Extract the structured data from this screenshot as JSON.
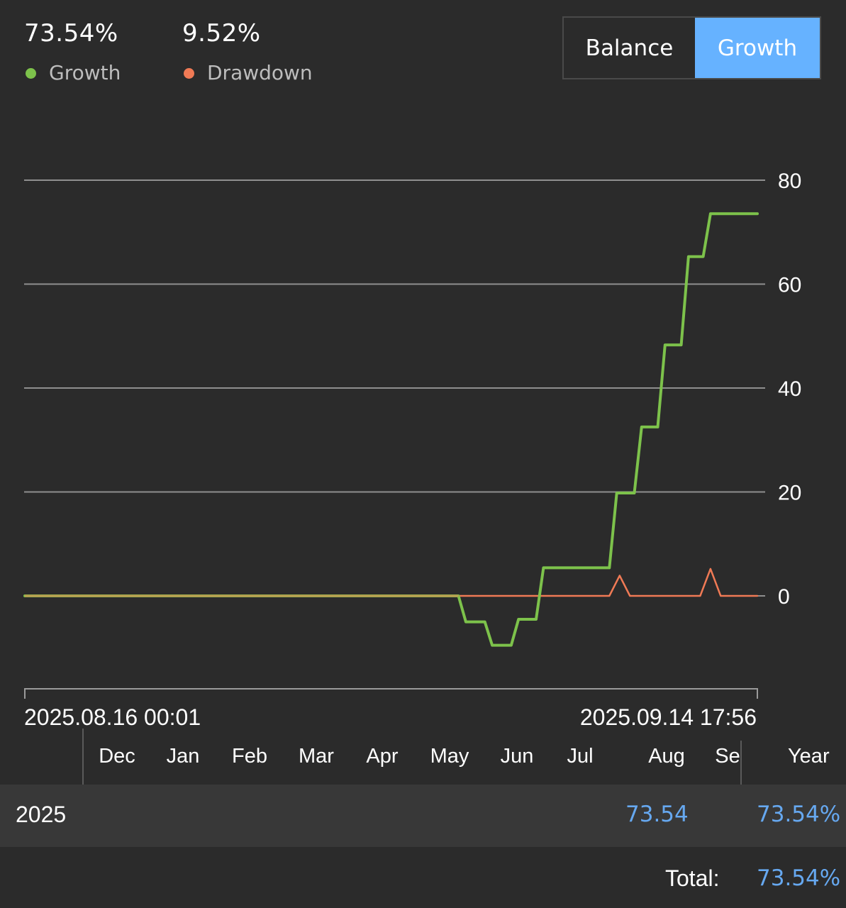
{
  "stats": {
    "growth": {
      "value": "73.54%",
      "label": "Growth",
      "color": "#7dc24b"
    },
    "drawdown": {
      "value": "9.52%",
      "label": "Drawdown",
      "color": "#f07a55"
    }
  },
  "toggle": {
    "balance_label": "Balance",
    "growth_label": "Growth",
    "active": "Growth",
    "active_color": "#66b2ff"
  },
  "chart_data": {
    "type": "line",
    "ylim": [
      -18,
      80
    ],
    "yticks": [
      0,
      20,
      40,
      60,
      80
    ],
    "xlim": [
      0,
      100
    ],
    "x_start_label": "2025.08.16 00:01",
    "x_end_label": "2025.09.14 17:56",
    "grid": true,
    "series": [
      {
        "name": "Growth",
        "color": "#7dc24b",
        "points": [
          [
            0,
            0
          ],
          [
            59.2,
            0
          ],
          [
            60.2,
            -5
          ],
          [
            62.8,
            -5
          ],
          [
            63.8,
            -9.5
          ],
          [
            66.4,
            -9.5
          ],
          [
            67.4,
            -4.5
          ],
          [
            69.8,
            -4.5
          ],
          [
            70.8,
            5.4
          ],
          [
            79.8,
            5.4
          ],
          [
            80.8,
            19.8
          ],
          [
            83.2,
            19.8
          ],
          [
            84.2,
            32.5
          ],
          [
            86.4,
            32.5
          ],
          [
            87.4,
            48.3
          ],
          [
            89.6,
            48.3
          ],
          [
            90.6,
            65.3
          ],
          [
            92.6,
            65.3
          ],
          [
            93.6,
            73.54
          ],
          [
            100,
            73.54
          ]
        ]
      },
      {
        "name": "Drawdown",
        "color": "#f07a55",
        "points": [
          [
            0,
            0
          ],
          [
            79.8,
            0
          ],
          [
            81.2,
            3.9
          ],
          [
            82.6,
            0
          ],
          [
            92.2,
            0
          ],
          [
            93.6,
            5.2
          ],
          [
            95,
            0
          ],
          [
            100,
            0
          ]
        ]
      }
    ]
  },
  "table": {
    "months": [
      "Dec",
      "Jan",
      "Feb",
      "Mar",
      "Apr",
      "May",
      "Jun",
      "Jul",
      "Aug",
      "Se"
    ],
    "year_header": "Year",
    "rows": [
      {
        "year": "2025",
        "aug": "73.54",
        "total": "73.54%"
      }
    ],
    "total_label": "Total:",
    "total_value": "73.54%",
    "value_color": "#66a8f0"
  }
}
